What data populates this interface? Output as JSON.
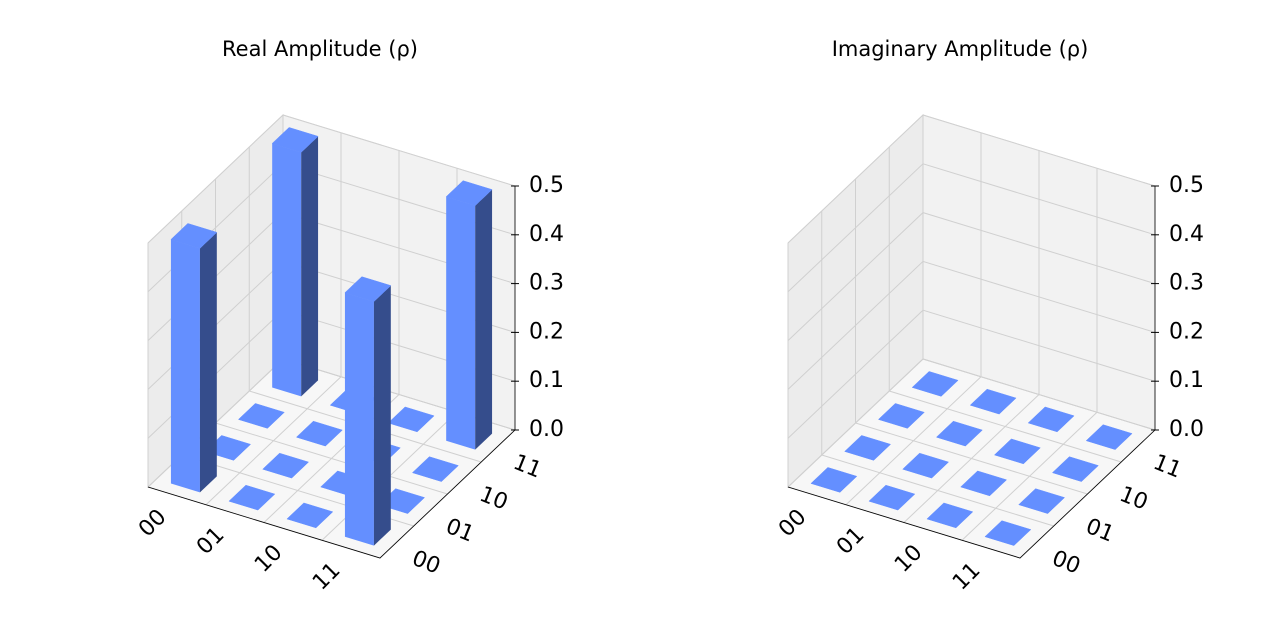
{
  "chart_data": [
    {
      "type": "bar3d",
      "title": "Real Amplitude (ρ)",
      "row_labels": [
        "00",
        "01",
        "10",
        "11"
      ],
      "column_labels": [
        "00",
        "01",
        "10",
        "11"
      ],
      "values": [
        [
          0.5,
          0,
          0,
          0.5
        ],
        [
          0,
          0,
          0,
          0
        ],
        [
          0,
          0,
          0,
          0
        ],
        [
          0.5,
          0,
          0,
          0.5
        ]
      ],
      "colors": [
        "#648fff",
        "#354d8c"
      ],
      "zlim": [
        0,
        0.5
      ],
      "zticks": [
        {
          "value": 0,
          "label": "0.0"
        },
        0.1,
        0.2,
        0.3,
        0.4,
        0.5
      ]
    },
    {
      "type": "bar3d",
      "title": "Imaginary Amplitude (ρ)",
      "row_labels": [
        "00",
        "01",
        "10",
        "11"
      ],
      "column_labels": [
        "00",
        "01",
        "10",
        "11"
      ],
      "values": [
        [
          0,
          0,
          0,
          0
        ],
        [
          0,
          0,
          0,
          0
        ],
        [
          0,
          0,
          0,
          0
        ],
        [
          0,
          0,
          0,
          0
        ]
      ],
      "colors": [
        "#648fff",
        "#354d8c"
      ],
      "zlim": [
        0,
        0.5
      ],
      "zticks": [
        {
          "value": 0,
          "label": "0.0"
        },
        0.1,
        0.2,
        0.3,
        0.4,
        0.5
      ]
    }
  ]
}
